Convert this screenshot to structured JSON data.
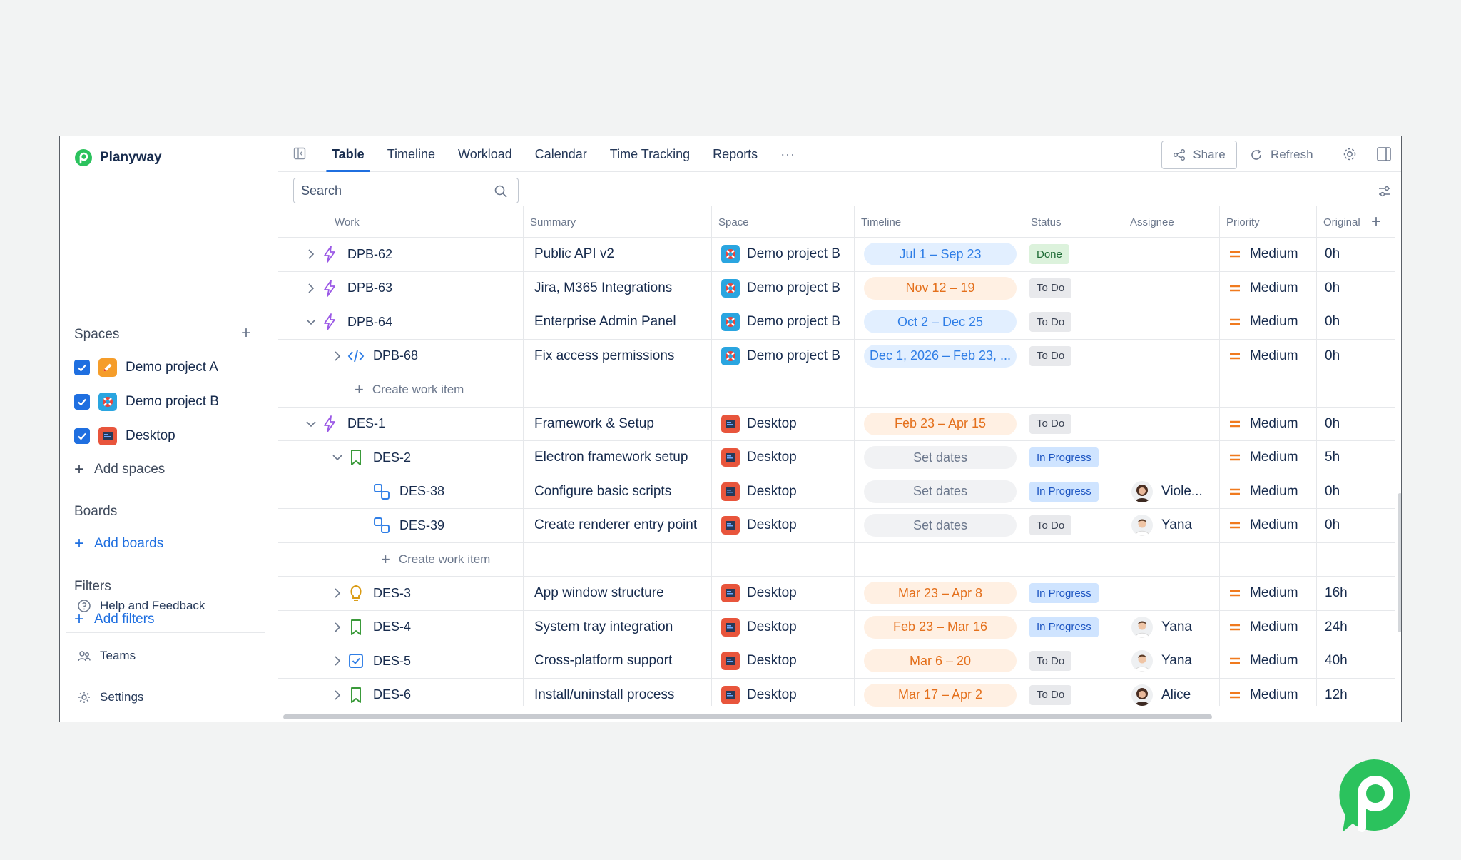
{
  "app": {
    "name": "Planyway"
  },
  "sidebar": {
    "spaces_title": "Spaces",
    "spaces": [
      {
        "label": "Demo project A",
        "checked": true
      },
      {
        "label": "Demo project B",
        "checked": true
      },
      {
        "label": "Desktop",
        "checked": true
      }
    ],
    "add_spaces": "Add spaces",
    "boards_title": "Boards",
    "add_boards": "Add boards",
    "filters_title": "Filters",
    "add_filters": "Add filters",
    "help": "Help and Feedback",
    "teams": "Teams",
    "settings": "Settings"
  },
  "tabs": [
    "Table",
    "Timeline",
    "Workload",
    "Calendar",
    "Time Tracking",
    "Reports",
    "···"
  ],
  "toolbar": {
    "share": "Share",
    "refresh": "Refresh"
  },
  "search": {
    "placeholder": "Search"
  },
  "columns": {
    "work": "Work",
    "summary": "Summary",
    "space": "Space",
    "timeline": "Timeline",
    "status": "Status",
    "assignee": "Assignee",
    "priority": "Priority",
    "original": "Original"
  },
  "create_label": "Create work item",
  "rows": [
    {
      "key": "DPB-62",
      "summary": "Public API v2",
      "space": "Demo project B",
      "timeline": "Jul 1 – Sep 23",
      "status": "Done",
      "assignee": "",
      "priority": "Medium",
      "original": "0h"
    },
    {
      "key": "DPB-63",
      "summary": "Jira, M365 Integrations",
      "space": "Demo project B",
      "timeline": "Nov 12 – 19",
      "status": "To Do",
      "assignee": "",
      "priority": "Medium",
      "original": "0h"
    },
    {
      "key": "DPB-64",
      "summary": "Enterprise Admin Panel",
      "space": "Demo project B",
      "timeline": "Oct 2 – Dec 25",
      "status": "To Do",
      "assignee": "",
      "priority": "Medium",
      "original": "0h"
    },
    {
      "key": "DPB-68",
      "summary": "Fix access permissions",
      "space": "Demo project B",
      "timeline": "Dec 1, 2026 – Feb 23, ...",
      "status": "To Do",
      "assignee": "",
      "priority": "Medium",
      "original": "0h"
    },
    {
      "key": "DES-1",
      "summary": "Framework & Setup",
      "space": "Desktop",
      "timeline": "Feb 23 – Apr 15",
      "status": "To Do",
      "assignee": "",
      "priority": "Medium",
      "original": "0h"
    },
    {
      "key": "DES-2",
      "summary": "Electron framework setup",
      "space": "Desktop",
      "timeline": "Set dates",
      "status": "In Progress",
      "assignee": "",
      "priority": "Medium",
      "original": "5h"
    },
    {
      "key": "DES-38",
      "summary": "Configure basic scripts",
      "space": "Desktop",
      "timeline": "Set dates",
      "status": "In Progress",
      "assignee": "Viole...",
      "priority": "Medium",
      "original": "0h"
    },
    {
      "key": "DES-39",
      "summary": "Create renderer entry point",
      "space": "Desktop",
      "timeline": "Set dates",
      "status": "To Do",
      "assignee": "Yana",
      "priority": "Medium",
      "original": "0h"
    },
    {
      "key": "DES-3",
      "summary": "App window structure",
      "space": "Desktop",
      "timeline": "Mar 23 – Apr 8",
      "status": "In Progress",
      "assignee": "",
      "priority": "Medium",
      "original": "16h"
    },
    {
      "key": "DES-4",
      "summary": "System tray integration",
      "space": "Desktop",
      "timeline": "Feb 23 – Mar 16",
      "status": "In Progress",
      "assignee": "Yana",
      "priority": "Medium",
      "original": "24h"
    },
    {
      "key": "DES-5",
      "summary": "Cross-platform support",
      "space": "Desktop",
      "timeline": "Mar 6 – 20",
      "status": "To Do",
      "assignee": "Yana",
      "priority": "Medium",
      "original": "40h"
    },
    {
      "key": "DES-6",
      "summary": "Install/uninstall process",
      "space": "Desktop",
      "timeline": "Mar 17 – Apr 2",
      "status": "To Do",
      "assignee": "Alice",
      "priority": "Medium",
      "original": "12h"
    }
  ],
  "colors": {
    "accent": "#1f6fe0",
    "brand": "#2bc25d",
    "priority": "#f07a1e"
  }
}
